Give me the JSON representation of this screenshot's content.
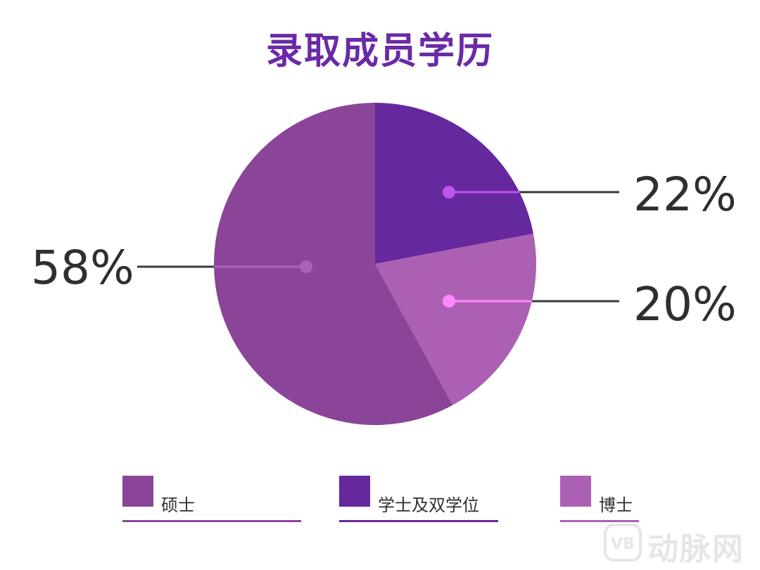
{
  "chart_data": {
    "type": "pie",
    "title": "录取成员学历",
    "slices": [
      {
        "label": "硕士",
        "value": 58,
        "display": "58%",
        "color": "#8a4599",
        "dot_color": "#a761b8"
      },
      {
        "label": "学士及双学位",
        "value": 22,
        "display": "22%",
        "color": "#66289d",
        "dot_color": "#bb55ee"
      },
      {
        "label": "博士",
        "value": 20,
        "display": "20%",
        "color": "#ac60b4",
        "dot_color": "#ff88ff"
      }
    ],
    "legend_position": "bottom"
  },
  "legend": [
    {
      "label": "硕士",
      "color": "#8a4599"
    },
    {
      "label": "学士及双学位",
      "color": "#66289d"
    },
    {
      "label": "博士",
      "color": "#ac60b4"
    }
  ],
  "watermark": {
    "text": "动脉网",
    "logo_text": "VB"
  },
  "colors": {
    "title": "#6a2aa6",
    "label_text": "#2f2f2f",
    "leader_line": "#3a3a3a"
  }
}
